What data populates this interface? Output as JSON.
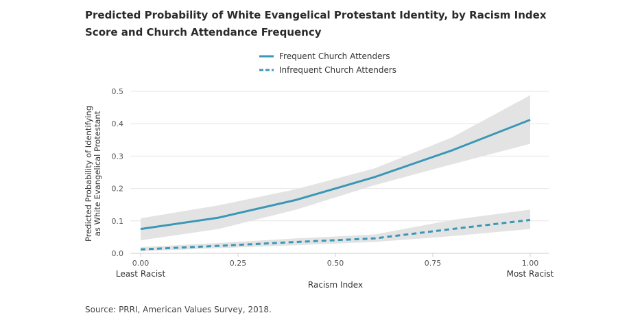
{
  "title": "Predicted Probability of White Evangelical Protestant Identity, by Racism Index Score and Church Attendance Frequency",
  "source": "Source: PRRI, American Values Survey, 2018.",
  "chart_data": {
    "type": "line",
    "title": "Predicted Probability of White Evangelical Protestant Identity, by Racism Index Score and Church Attendance Frequency",
    "xlabel": "Racism Index",
    "ylabel": "Predicted Probability of Identifying as White Evangelical Protestant",
    "ylabel_lines": [
      "Predicted Probability of Identifying",
      "as White Evangelical Protestant"
    ],
    "x_ticks": [
      "0.00",
      "0.25",
      "0.50",
      "0.75",
      "1.00"
    ],
    "x_tick_values": [
      0,
      0.25,
      0.5,
      0.75,
      1.0
    ],
    "x_end_labels": [
      "Least Racist",
      "Most Racist"
    ],
    "y_ticks": [
      "0.0",
      "0.1",
      "0.2",
      "0.3",
      "0.4",
      "0.5"
    ],
    "y_tick_values": [
      0,
      0.1,
      0.2,
      0.3,
      0.4,
      0.5
    ],
    "xlim": [
      0,
      1
    ],
    "ylim": [
      0,
      0.5
    ],
    "grid": "horizontal",
    "legend_position": "top-center",
    "x": [
      0,
      0.2,
      0.4,
      0.6,
      0.8,
      1.0
    ],
    "series": [
      {
        "name": "Frequent Church Attenders",
        "style": "solid",
        "color": "#3a97b5",
        "values": [
          0.075,
          0.11,
          0.165,
          0.235,
          0.318,
          0.412
        ],
        "lower": [
          0.04,
          0.075,
          0.135,
          0.21,
          0.275,
          0.338
        ],
        "upper": [
          0.108,
          0.148,
          0.198,
          0.262,
          0.358,
          0.488
        ]
      },
      {
        "name": "Infrequent Church Attenders",
        "style": "dashed",
        "color": "#3a97b5",
        "values": [
          0.012,
          0.023,
          0.035,
          0.046,
          0.075,
          0.103
        ],
        "lower": [
          0.006,
          0.016,
          0.025,
          0.035,
          0.053,
          0.075
        ],
        "upper": [
          0.019,
          0.032,
          0.046,
          0.058,
          0.103,
          0.135
        ]
      }
    ],
    "band_color": "#e3e3e4",
    "grid_color": "#e4e4e4",
    "axis_color": "#cfcfcf",
    "tick_label_color": "#555555"
  }
}
